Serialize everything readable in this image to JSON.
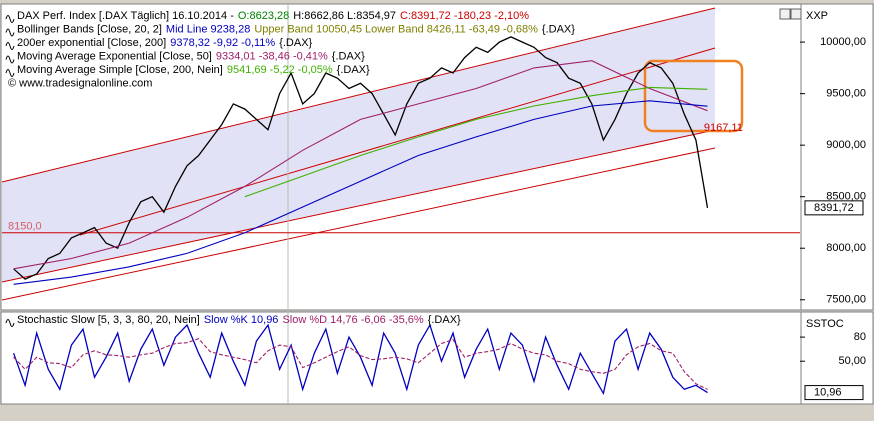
{
  "chart_data": [
    {
      "type": "line",
      "legend_rows": [
        [
          {
            "text": "DAX Perf. Index [.DAX Täglich] 16.10.2014 -",
            "color": "#000000"
          },
          {
            "text": "O:8623,28",
            "color": "#008000"
          },
          {
            "text": "H:8662,86 L:8354,97",
            "color": "#000000"
          },
          {
            "text": "C:8391,72 -180,23 -2,10%",
            "color": "#cc0000"
          }
        ],
        [
          {
            "text": "Bollinger Bands [Close, 20, 2]",
            "color": "#000000"
          },
          {
            "text": "Mid Line 9238,28",
            "color": "#0000c0"
          },
          {
            "text": "Upper Band 10050,45 Lower Band 8426,11 -63,49 -0,68%",
            "color": "#808000"
          },
          {
            "text": "{.DAX}",
            "color": "#000000"
          }
        ],
        [
          {
            "text": "200er exponential [Close, 200]",
            "color": "#000000"
          },
          {
            "text": "9378,32 -9,92 -0,11%",
            "color": "#0000c0"
          },
          {
            "text": "{.DAX}",
            "color": "#000000"
          }
        ],
        [
          {
            "text": "Moving Average Exponential [Close, 50]",
            "color": "#000000"
          },
          {
            "text": "9334,01 -38,46 -0,41%",
            "color": "#a0206a"
          },
          {
            "text": "{.DAX}",
            "color": "#000000"
          }
        ],
        [
          {
            "text": "Moving Average Simple [Close, 200, Nein]",
            "color": "#000000"
          },
          {
            "text": "9541,69 -5,22 -0,05%",
            "color": "#40b000"
          },
          {
            "text": "{.DAX}",
            "color": "#000000"
          }
        ]
      ],
      "copyright": "© www.tradesignalonline.com",
      "axis_label": "XXP",
      "xlim": [
        -1,
        68
      ],
      "ylim": [
        7420,
        10360
      ],
      "yticks": [
        {
          "value": 7500,
          "label": "7500,00"
        },
        {
          "value": 8000,
          "label": "8000,00"
        },
        {
          "value": 8500,
          "label": "8500,00"
        },
        {
          "value": 9000,
          "label": "9000,00"
        },
        {
          "value": 9500,
          "label": "9500,00"
        },
        {
          "value": 10000,
          "label": "10000,00"
        }
      ],
      "series": [
        {
          "color": "#000000",
          "values": [
            7800,
            7700,
            7750,
            7900,
            7950,
            8100,
            8150,
            8200,
            8050,
            8000,
            8250,
            8450,
            8500,
            8350,
            8600,
            8800,
            8900,
            9050,
            9200,
            9400,
            9350,
            9250,
            9150,
            9500,
            9700,
            9400,
            9500,
            9700,
            9650,
            9550,
            9600,
            9500,
            9300,
            9100,
            9400,
            9600,
            9650,
            9750,
            9700,
            9850,
            9950,
            9900,
            10000,
            10050,
            10000,
            9950,
            9850,
            9800,
            9650,
            9600,
            9400,
            9050,
            9250,
            9500,
            9700,
            9800,
            9750,
            9600,
            9300,
            9050,
            8391.72
          ]
        },
        {
          "color": "#a0206a",
          "x": [
            0,
            5,
            10,
            15,
            20,
            25,
            30,
            35,
            40,
            45,
            50,
            55,
            60
          ],
          "values": [
            7800,
            7900,
            8050,
            8300,
            8600,
            8950,
            9250,
            9400,
            9550,
            9750,
            9820,
            9550,
            9334.01
          ]
        },
        {
          "color": "#0000c0",
          "x": [
            0,
            5,
            10,
            15,
            20,
            25,
            30,
            35,
            40,
            45,
            50,
            55,
            60
          ],
          "values": [
            7650,
            7720,
            7820,
            7950,
            8150,
            8400,
            8650,
            8900,
            9080,
            9250,
            9380,
            9430,
            9378.32
          ]
        },
        {
          "color": "#40b000",
          "x": [
            20,
            25,
            30,
            35,
            40,
            45,
            50,
            55,
            60
          ],
          "values": [
            8500,
            8700,
            8900,
            9080,
            9250,
            9380,
            9480,
            9560,
            9541.69
          ]
        }
      ],
      "hline": {
        "value": 8150,
        "label": "8150,0",
        "color": "#cc0000"
      },
      "annotation": {
        "value": 9167.11,
        "label": "9167,11",
        "color": "#cc0000"
      },
      "last_value": {
        "value": 8391.72,
        "label": "8391,72"
      }
    },
    {
      "type": "line",
      "legend_rows": [
        [
          {
            "text": "Stochastic Slow [5, 3, 3, 80, 20, Nein]",
            "color": "#000000"
          },
          {
            "text": "Slow %K 10,96",
            "color": "#0000c0"
          },
          {
            "text": "Slow %D 14,76 -6,06 -35,6%",
            "color": "#a0206a"
          },
          {
            "text": "{.DAX}",
            "color": "#000000"
          }
        ]
      ],
      "axis_label": "SSTOC",
      "xlim": [
        -1,
        68
      ],
      "ylim": [
        -2,
        110
      ],
      "yticks": [
        80,
        {
          "value": 50,
          "label": "50,00"
        }
      ],
      "series": [
        {
          "color": "#0000c0",
          "values": [
            60,
            20,
            85,
            40,
            15,
            70,
            90,
            30,
            55,
            85,
            25,
            65,
            90,
            45,
            80,
            95,
            60,
            30,
            85,
            50,
            20,
            75,
            95,
            40,
            70,
            15,
            60,
            90,
            35,
            80,
            55,
            20,
            85,
            60,
            15,
            70,
            95,
            50,
            85,
            30,
            65,
            90,
            40,
            85,
            70,
            25,
            80,
            45,
            15,
            60,
            35,
            10,
            75,
            90,
            40,
            85,
            65,
            30,
            15,
            20,
            10.96
          ]
        },
        {
          "color": "#a0206a",
          "dashed": true,
          "values": [
            55,
            40,
            55,
            48,
            47,
            42,
            58,
            63,
            58,
            57,
            55,
            58,
            60,
            67,
            72,
            73,
            78,
            62,
            58,
            55,
            52,
            48,
            63,
            70,
            68,
            42,
            48,
            55,
            62,
            68,
            57,
            52,
            53,
            55,
            53,
            48,
            60,
            72,
            77,
            55,
            60,
            62,
            65,
            72,
            65,
            60,
            58,
            50,
            47,
            40,
            37,
            35,
            40,
            58,
            68,
            72,
            63,
            60,
            37,
            22,
            14.76
          ]
        }
      ],
      "last_value": {
        "value": 10.96,
        "label": "10,96"
      }
    }
  ]
}
